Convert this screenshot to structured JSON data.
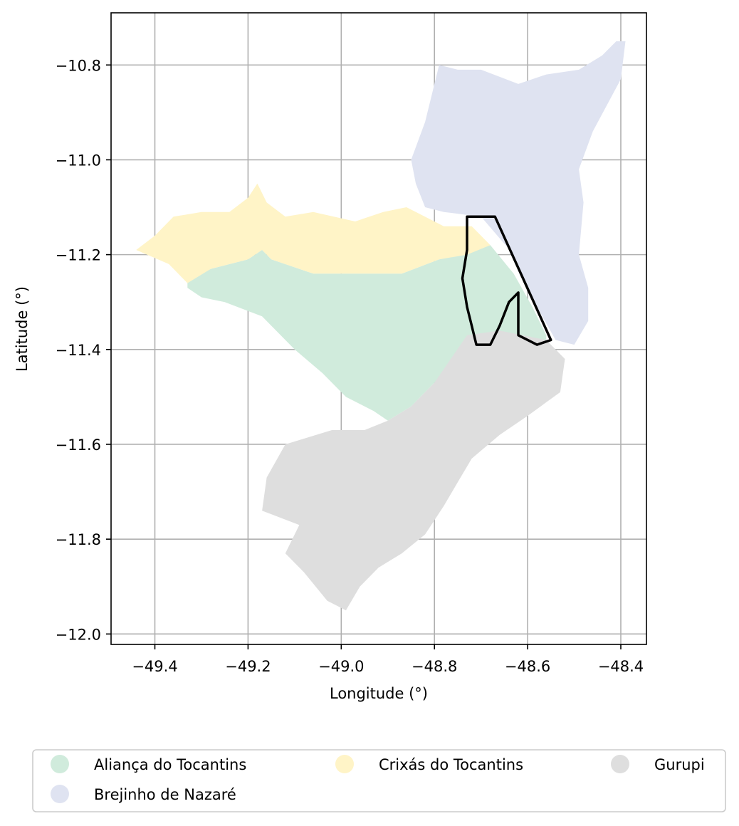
{
  "map": {
    "xlabel": "Longitude (°)",
    "ylabel": "Latitude (°)",
    "xlim": [
      -49.494,
      -48.345
    ],
    "ylim": [
      -12.022,
      -10.69
    ],
    "x_ticks": [
      {
        "value": -49.4,
        "label": "−49.4"
      },
      {
        "value": -49.2,
        "label": "−49.2"
      },
      {
        "value": -49.0,
        "label": "−49.0"
      },
      {
        "value": -48.8,
        "label": "−48.8"
      },
      {
        "value": -48.6,
        "label": "−48.6"
      },
      {
        "value": -48.4,
        "label": "−48.4"
      }
    ],
    "y_ticks": [
      {
        "value": -10.8,
        "label": "−10.8"
      },
      {
        "value": -11.0,
        "label": "−11.0"
      },
      {
        "value": -11.2,
        "label": "−11.2"
      },
      {
        "value": -11.4,
        "label": "−11.4"
      },
      {
        "value": -11.6,
        "label": "−11.6"
      },
      {
        "value": -11.8,
        "label": "−11.8"
      },
      {
        "value": -12.0,
        "label": "−12.0"
      }
    ],
    "grid": true,
    "legend_placement": "below plot, 3 columns",
    "regions": [
      {
        "name": "Aliança do Tocantins",
        "color": "#d0ebdc",
        "outline": [
          [
            -49.33,
            -11.25
          ],
          [
            -49.28,
            -11.23
          ],
          [
            -49.2,
            -11.21
          ],
          [
            -49.17,
            -11.19
          ],
          [
            -49.15,
            -11.21
          ],
          [
            -49.06,
            -11.24
          ],
          [
            -48.93,
            -11.24
          ],
          [
            -48.87,
            -11.24
          ],
          [
            -48.79,
            -11.21
          ],
          [
            -48.74,
            -11.2
          ],
          [
            -48.68,
            -11.18
          ],
          [
            -48.63,
            -11.24
          ],
          [
            -48.59,
            -11.31
          ],
          [
            -48.56,
            -11.37
          ],
          [
            -48.56,
            -11.38
          ],
          [
            -48.61,
            -11.4
          ],
          [
            -48.75,
            -11.42
          ],
          [
            -48.8,
            -11.47
          ],
          [
            -48.85,
            -11.52
          ],
          [
            -48.9,
            -11.55
          ],
          [
            -48.93,
            -11.53
          ],
          [
            -48.99,
            -11.5
          ],
          [
            -49.04,
            -11.45
          ],
          [
            -49.1,
            -11.4
          ],
          [
            -49.17,
            -11.33
          ],
          [
            -49.25,
            -11.3
          ],
          [
            -49.3,
            -11.29
          ],
          [
            -49.33,
            -11.27
          ]
        ]
      },
      {
        "name": "Brejinho de Nazaré",
        "color": "#dfe3f1",
        "outline": [
          [
            -48.82,
            -11.1
          ],
          [
            -48.84,
            -11.05
          ],
          [
            -48.85,
            -11.0
          ],
          [
            -48.82,
            -10.92
          ],
          [
            -48.79,
            -10.8
          ],
          [
            -48.75,
            -10.81
          ],
          [
            -48.7,
            -10.81
          ],
          [
            -48.62,
            -10.84
          ],
          [
            -48.56,
            -10.82
          ],
          [
            -48.49,
            -10.81
          ],
          [
            -48.44,
            -10.78
          ],
          [
            -48.41,
            -10.75
          ],
          [
            -48.39,
            -10.75
          ],
          [
            -48.4,
            -10.83
          ],
          [
            -48.46,
            -10.94
          ],
          [
            -48.49,
            -11.02
          ],
          [
            -48.48,
            -11.09
          ],
          [
            -48.49,
            -11.2
          ],
          [
            -48.47,
            -11.27
          ],
          [
            -48.47,
            -11.34
          ],
          [
            -48.5,
            -11.39
          ],
          [
            -48.54,
            -11.38
          ],
          [
            -48.58,
            -11.31
          ],
          [
            -48.6,
            -11.27
          ],
          [
            -48.63,
            -11.2
          ],
          [
            -48.7,
            -11.12
          ],
          [
            -48.78,
            -11.11
          ]
        ]
      },
      {
        "name": "Crixás do Tocantins",
        "color": "#fff4c7",
        "outline": [
          [
            -49.44,
            -11.19
          ],
          [
            -49.4,
            -11.16
          ],
          [
            -49.36,
            -11.12
          ],
          [
            -49.3,
            -11.11
          ],
          [
            -49.24,
            -11.11
          ],
          [
            -49.2,
            -11.08
          ],
          [
            -49.18,
            -11.05
          ],
          [
            -49.16,
            -11.09
          ],
          [
            -49.12,
            -11.12
          ],
          [
            -49.06,
            -11.11
          ],
          [
            -48.97,
            -11.13
          ],
          [
            -48.91,
            -11.11
          ],
          [
            -48.86,
            -11.1
          ],
          [
            -48.78,
            -11.14
          ],
          [
            -48.72,
            -11.14
          ],
          [
            -48.68,
            -11.18
          ],
          [
            -48.73,
            -11.2
          ],
          [
            -48.79,
            -11.21
          ],
          [
            -48.87,
            -11.24
          ],
          [
            -48.93,
            -11.24
          ],
          [
            -49.06,
            -11.24
          ],
          [
            -49.15,
            -11.21
          ],
          [
            -49.17,
            -11.19
          ],
          [
            -49.2,
            -11.21
          ],
          [
            -49.28,
            -11.23
          ],
          [
            -49.33,
            -11.26
          ],
          [
            -49.37,
            -11.22
          ]
        ]
      },
      {
        "name": "Gurupi",
        "color": "#dedede",
        "outline": [
          [
            -48.73,
            -11.37
          ],
          [
            -48.66,
            -11.36
          ],
          [
            -48.56,
            -11.38
          ],
          [
            -48.52,
            -11.42
          ],
          [
            -48.53,
            -11.49
          ],
          [
            -48.6,
            -11.54
          ],
          [
            -48.66,
            -11.58
          ],
          [
            -48.72,
            -11.63
          ],
          [
            -48.75,
            -11.68
          ],
          [
            -48.78,
            -11.73
          ],
          [
            -48.82,
            -11.79
          ],
          [
            -48.87,
            -11.83
          ],
          [
            -48.92,
            -11.86
          ],
          [
            -48.96,
            -11.9
          ],
          [
            -48.99,
            -11.95
          ],
          [
            -49.03,
            -11.93
          ],
          [
            -49.08,
            -11.87
          ],
          [
            -49.12,
            -11.83
          ],
          [
            -49.09,
            -11.77
          ],
          [
            -49.17,
            -11.74
          ],
          [
            -49.16,
            -11.67
          ],
          [
            -49.12,
            -11.6
          ],
          [
            -49.02,
            -11.57
          ],
          [
            -48.95,
            -11.57
          ],
          [
            -48.9,
            -11.55
          ],
          [
            -48.85,
            -11.52
          ],
          [
            -48.8,
            -11.47
          ]
        ]
      }
    ],
    "highlight_outline": [
      [
        -48.73,
        -11.12
      ],
      [
        -48.69,
        -11.12
      ],
      [
        -48.67,
        -11.12
      ],
      [
        -48.61,
        -11.25
      ],
      [
        -48.55,
        -11.38
      ],
      [
        -48.58,
        -11.39
      ],
      [
        -48.62,
        -11.37
      ],
      [
        -48.62,
        -11.33
      ],
      [
        -48.62,
        -11.28
      ],
      [
        -48.64,
        -11.3
      ],
      [
        -48.66,
        -11.35
      ],
      [
        -48.68,
        -11.39
      ],
      [
        -48.71,
        -11.39
      ],
      [
        -48.72,
        -11.35
      ],
      [
        -48.73,
        -11.31
      ],
      [
        -48.74,
        -11.25
      ],
      [
        -48.73,
        -11.19
      ]
    ],
    "legend": [
      {
        "label": "Aliança do Tocantins",
        "color": "#d0ebdc"
      },
      {
        "label": "Brejinho de Nazaré",
        "color": "#dfe3f1"
      },
      {
        "label": "Crixás do Tocantins",
        "color": "#fff4c7"
      },
      {
        "label": "Gurupi",
        "color": "#dedede"
      }
    ]
  }
}
